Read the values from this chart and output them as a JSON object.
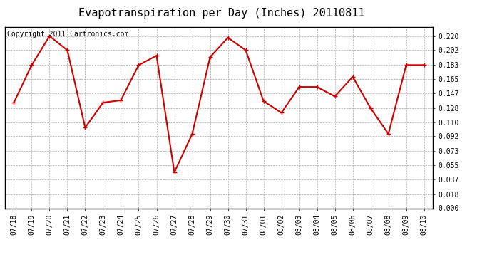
{
  "title": "Evapotranspiration per Day (Inches) 20110811",
  "copyright": "Copyright 2011 Cartronics.com",
  "x_labels": [
    "07/18",
    "07/19",
    "07/20",
    "07/21",
    "07/22",
    "07/23",
    "07/24",
    "07/25",
    "07/26",
    "07/27",
    "07/28",
    "07/29",
    "07/30",
    "07/31",
    "08/01",
    "08/02",
    "08/03",
    "08/04",
    "08/05",
    "08/06",
    "08/07",
    "08/08",
    "08/09",
    "08/10"
  ],
  "y_values": [
    0.135,
    0.183,
    0.22,
    0.202,
    0.103,
    0.135,
    0.138,
    0.183,
    0.195,
    0.046,
    0.095,
    0.193,
    0.218,
    0.202,
    0.137,
    0.122,
    0.155,
    0.155,
    0.143,
    0.168,
    0.128,
    0.095,
    0.183,
    0.183
  ],
  "line_color": "#cc0000",
  "marker": "+",
  "marker_size": 5,
  "marker_color": "#cc0000",
  "bg_color": "#ffffff",
  "plot_bg_color": "#ffffff",
  "grid_color": "#aaaaaa",
  "y_ticks": [
    0.0,
    0.018,
    0.037,
    0.055,
    0.073,
    0.092,
    0.11,
    0.128,
    0.147,
    0.165,
    0.183,
    0.202,
    0.22
  ],
  "ylim": [
    0.0,
    0.232
  ],
  "title_fontsize": 11,
  "copyright_fontsize": 7,
  "tick_fontsize": 7
}
